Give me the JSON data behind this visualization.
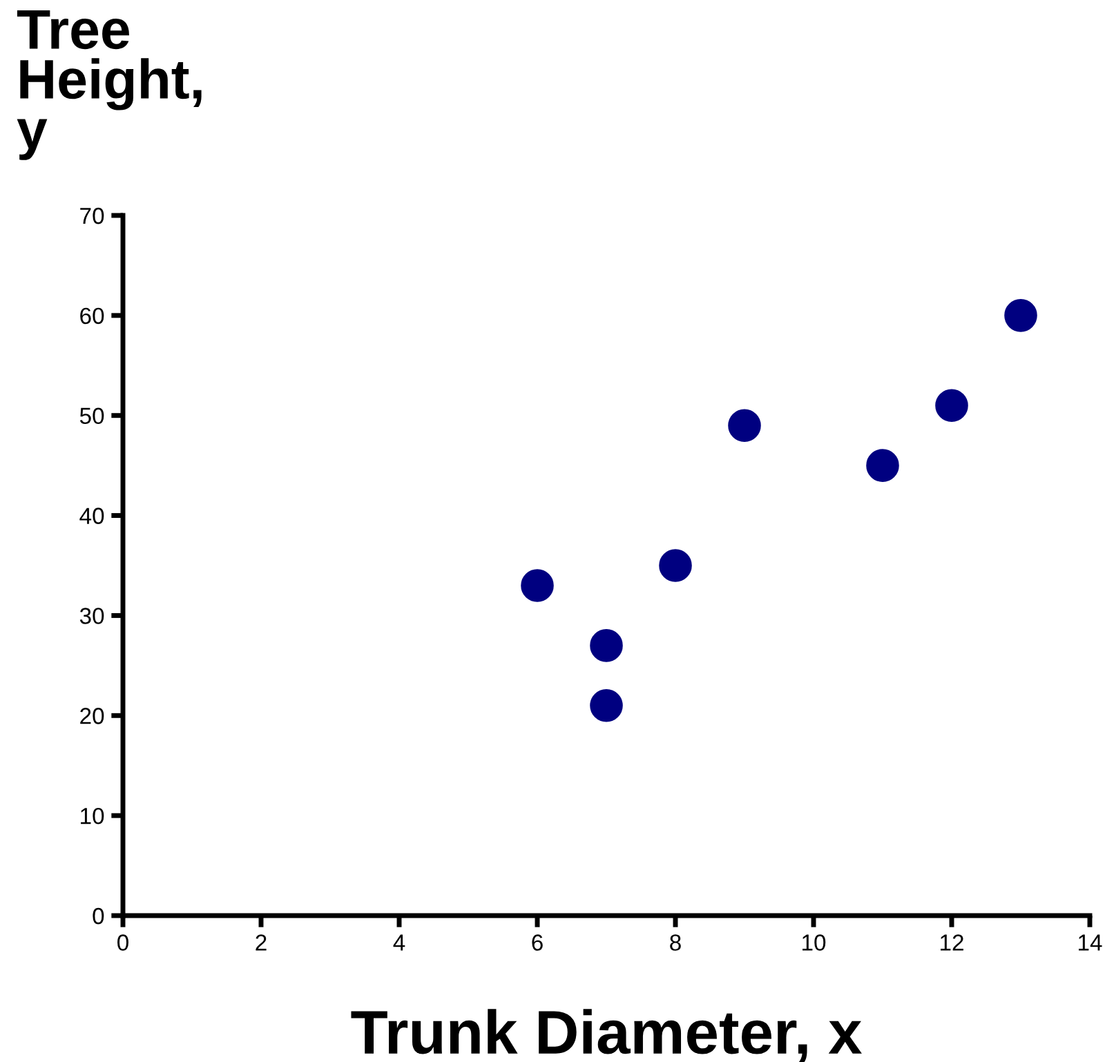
{
  "chart_data": {
    "type": "scatter",
    "xlabel": "Trunk Diameter, x",
    "ylabel": "Tree Height, y",
    "x": [
      6,
      7,
      7,
      8,
      9,
      11,
      12,
      13
    ],
    "series": [
      {
        "color": "#000080",
        "values": [
          33,
          27,
          21,
          35,
          49,
          45,
          51,
          60
        ]
      }
    ],
    "xlim": [
      0,
      14
    ],
    "xticks": [
      0,
      2,
      4,
      6,
      8,
      10,
      12,
      14
    ],
    "ylim": [
      0,
      70
    ],
    "yticks": [
      0,
      10,
      20,
      30,
      40,
      50,
      60,
      70
    ],
    "grid": false,
    "legend": false,
    "marker": "circle"
  }
}
